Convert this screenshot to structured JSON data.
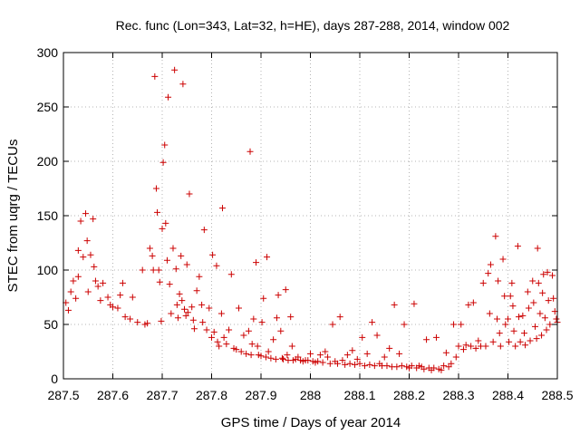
{
  "chart_data": {
    "type": "scatter",
    "title": "Rec. func (Lon=343, Lat=32, h=HE), days 287-288, 2014, window 002",
    "xlabel": "GPS time / Days of year 2014",
    "ylabel": "STEC from uqrg / TECUs",
    "xlim": [
      287.5,
      288.5
    ],
    "ylim": [
      0,
      300
    ],
    "xticks": [
      287.5,
      287.6,
      287.7,
      287.8,
      287.9,
      288.0,
      288.1,
      288.2,
      288.3,
      288.4,
      288.5
    ],
    "xtick_labels": [
      "287.5",
      "287.6",
      "287.7",
      "287.8",
      "287.9",
      "288",
      "288.1",
      "288.2",
      "288.3",
      "288.4",
      "288.5"
    ],
    "yticks": [
      0,
      50,
      100,
      150,
      200,
      250,
      300
    ],
    "ytick_labels": [
      "0",
      "50",
      "100",
      "150",
      "200",
      "250",
      "300"
    ],
    "grid": true,
    "marker": "+",
    "color": "#cc0000",
    "series": [
      {
        "name": "STEC",
        "points": [
          [
            287.505,
            70
          ],
          [
            287.51,
            63
          ],
          [
            287.515,
            80
          ],
          [
            287.52,
            90
          ],
          [
            287.525,
            74
          ],
          [
            287.53,
            94
          ],
          [
            287.53,
            118
          ],
          [
            287.535,
            145
          ],
          [
            287.54,
            112
          ],
          [
            287.545,
            152
          ],
          [
            287.548,
            127
          ],
          [
            287.55,
            80
          ],
          [
            287.555,
            114
          ],
          [
            287.56,
            147
          ],
          [
            287.562,
            103
          ],
          [
            287.565,
            90
          ],
          [
            287.57,
            85
          ],
          [
            287.575,
            72
          ],
          [
            287.58,
            88
          ],
          [
            287.59,
            75
          ],
          [
            287.595,
            68
          ],
          [
            287.6,
            66
          ],
          [
            287.61,
            65
          ],
          [
            287.615,
            77
          ],
          [
            287.62,
            88
          ],
          [
            287.625,
            57
          ],
          [
            287.635,
            55
          ],
          [
            287.64,
            75
          ],
          [
            287.65,
            52
          ],
          [
            287.66,
            100
          ],
          [
            287.665,
            50
          ],
          [
            287.67,
            51
          ],
          [
            287.675,
            120
          ],
          [
            287.68,
            113
          ],
          [
            287.682,
            100
          ],
          [
            287.685,
            278
          ],
          [
            287.688,
            175
          ],
          [
            287.69,
            153
          ],
          [
            287.693,
            100
          ],
          [
            287.695,
            89
          ],
          [
            287.698,
            53
          ],
          [
            287.7,
            138
          ],
          [
            287.702,
            199
          ],
          [
            287.705,
            215
          ],
          [
            287.707,
            143
          ],
          [
            287.71,
            109
          ],
          [
            287.712,
            259
          ],
          [
            287.715,
            87
          ],
          [
            287.718,
            60
          ],
          [
            287.722,
            120
          ],
          [
            287.725,
            284
          ],
          [
            287.728,
            101
          ],
          [
            287.73,
            68
          ],
          [
            287.732,
            56
          ],
          [
            287.735,
            78
          ],
          [
            287.738,
            113
          ],
          [
            287.74,
            72
          ],
          [
            287.742,
            271
          ],
          [
            287.745,
            64
          ],
          [
            287.748,
            58
          ],
          [
            287.75,
            105
          ],
          [
            287.752,
            61
          ],
          [
            287.755,
            170
          ],
          [
            287.76,
            66
          ],
          [
            287.763,
            54
          ],
          [
            287.765,
            46
          ],
          [
            287.77,
            81
          ],
          [
            287.775,
            94
          ],
          [
            287.78,
            68
          ],
          [
            287.782,
            52
          ],
          [
            287.785,
            137
          ],
          [
            287.79,
            45
          ],
          [
            287.795,
            65
          ],
          [
            287.8,
            38
          ],
          [
            287.802,
            114
          ],
          [
            287.805,
            43
          ],
          [
            287.81,
            104
          ],
          [
            287.812,
            34
          ],
          [
            287.815,
            30
          ],
          [
            287.82,
            60
          ],
          [
            287.822,
            157
          ],
          [
            287.825,
            38
          ],
          [
            287.83,
            32
          ],
          [
            287.835,
            45
          ],
          [
            287.84,
            96
          ],
          [
            287.845,
            28
          ],
          [
            287.85,
            27
          ],
          [
            287.855,
            65
          ],
          [
            287.86,
            25
          ],
          [
            287.865,
            40
          ],
          [
            287.87,
            23
          ],
          [
            287.875,
            44
          ],
          [
            287.878,
            209
          ],
          [
            287.88,
            22
          ],
          [
            287.882,
            32
          ],
          [
            287.885,
            55
          ],
          [
            287.89,
            107
          ],
          [
            287.893,
            30
          ],
          [
            287.895,
            22
          ],
          [
            287.9,
            21
          ],
          [
            287.902,
            52
          ],
          [
            287.905,
            74
          ],
          [
            287.91,
            20
          ],
          [
            287.912,
            112
          ],
          [
            287.915,
            25
          ],
          [
            287.92,
            19
          ],
          [
            287.925,
            36
          ],
          [
            287.93,
            18
          ],
          [
            287.932,
            56
          ],
          [
            287.935,
            77
          ],
          [
            287.94,
            44
          ],
          [
            287.943,
            19
          ],
          [
            287.945,
            18
          ],
          [
            287.95,
            82
          ],
          [
            287.953,
            22
          ],
          [
            287.955,
            17
          ],
          [
            287.96,
            57
          ],
          [
            287.963,
            30
          ],
          [
            287.965,
            17
          ],
          [
            287.97,
            18
          ],
          [
            287.975,
            20
          ],
          [
            287.98,
            17
          ],
          [
            287.985,
            16
          ],
          [
            287.99,
            17
          ],
          [
            287.995,
            17
          ],
          [
            288.0,
            23
          ],
          [
            288.005,
            16
          ],
          [
            288.01,
            15
          ],
          [
            288.015,
            16
          ],
          [
            288.02,
            22
          ],
          [
            288.025,
            15
          ],
          [
            288.03,
            25
          ],
          [
            288.035,
            20
          ],
          [
            288.04,
            14
          ],
          [
            288.045,
            50
          ],
          [
            288.05,
            16
          ],
          [
            288.055,
            14
          ],
          [
            288.06,
            57
          ],
          [
            288.065,
            17
          ],
          [
            288.07,
            13
          ],
          [
            288.075,
            22
          ],
          [
            288.08,
            14
          ],
          [
            288.085,
            26
          ],
          [
            288.09,
            13
          ],
          [
            288.095,
            18
          ],
          [
            288.1,
            14
          ],
          [
            288.105,
            38
          ],
          [
            288.11,
            12
          ],
          [
            288.115,
            23
          ],
          [
            288.12,
            13
          ],
          [
            288.125,
            52
          ],
          [
            288.13,
            12
          ],
          [
            288.135,
            40
          ],
          [
            288.14,
            14
          ],
          [
            288.145,
            12
          ],
          [
            288.15,
            20
          ],
          [
            288.155,
            12
          ],
          [
            288.16,
            28
          ],
          [
            288.165,
            11
          ],
          [
            288.17,
            68
          ],
          [
            288.175,
            11
          ],
          [
            288.18,
            23
          ],
          [
            288.185,
            12
          ],
          [
            288.19,
            50
          ],
          [
            288.195,
            11
          ],
          [
            288.2,
            10
          ],
          [
            288.205,
            12
          ],
          [
            288.21,
            69
          ],
          [
            288.215,
            10
          ],
          [
            288.22,
            12
          ],
          [
            288.225,
            11
          ],
          [
            288.23,
            9
          ],
          [
            288.235,
            36
          ],
          [
            288.24,
            10
          ],
          [
            288.245,
            8
          ],
          [
            288.25,
            10
          ],
          [
            288.255,
            38
          ],
          [
            288.26,
            9
          ],
          [
            288.265,
            8
          ],
          [
            288.27,
            12
          ],
          [
            288.275,
            24
          ],
          [
            288.28,
            11
          ],
          [
            288.285,
            14
          ],
          [
            288.29,
            50
          ],
          [
            288.295,
            20
          ],
          [
            288.3,
            30
          ],
          [
            288.305,
            50
          ],
          [
            288.31,
            27
          ],
          [
            288.315,
            31
          ],
          [
            288.32,
            68
          ],
          [
            288.325,
            30
          ],
          [
            288.33,
            70
          ],
          [
            288.335,
            28
          ],
          [
            288.34,
            35
          ],
          [
            288.345,
            30
          ],
          [
            288.35,
            88
          ],
          [
            288.355,
            30
          ],
          [
            288.36,
            97
          ],
          [
            288.363,
            60
          ],
          [
            288.365,
            105
          ],
          [
            288.37,
            34
          ],
          [
            288.375,
            131
          ],
          [
            288.378,
            55
          ],
          [
            288.38,
            90
          ],
          [
            288.383,
            42
          ],
          [
            288.385,
            30
          ],
          [
            288.39,
            110
          ],
          [
            288.393,
            76
          ],
          [
            288.395,
            50
          ],
          [
            288.4,
            55
          ],
          [
            288.402,
            34
          ],
          [
            288.405,
            76
          ],
          [
            288.408,
            88
          ],
          [
            288.41,
            67
          ],
          [
            288.412,
            44
          ],
          [
            288.415,
            30
          ],
          [
            288.42,
            122
          ],
          [
            288.422,
            57
          ],
          [
            288.425,
            34
          ],
          [
            288.43,
            58
          ],
          [
            288.433,
            42
          ],
          [
            288.435,
            31
          ],
          [
            288.44,
            80
          ],
          [
            288.442,
            65
          ],
          [
            288.445,
            35
          ],
          [
            288.45,
            90
          ],
          [
            288.452,
            70
          ],
          [
            288.455,
            48
          ],
          [
            288.458,
            37
          ],
          [
            288.46,
            120
          ],
          [
            288.462,
            88
          ],
          [
            288.465,
            60
          ],
          [
            288.468,
            40
          ],
          [
            288.47,
            79
          ],
          [
            288.472,
            96
          ],
          [
            288.475,
            56
          ],
          [
            288.478,
            45
          ],
          [
            288.48,
            98
          ],
          [
            288.482,
            72
          ],
          [
            288.485,
            50
          ],
          [
            288.49,
            95
          ],
          [
            288.492,
            74
          ],
          [
            288.495,
            62
          ],
          [
            288.498,
            55
          ],
          [
            288.5,
            52
          ]
        ]
      }
    ]
  }
}
